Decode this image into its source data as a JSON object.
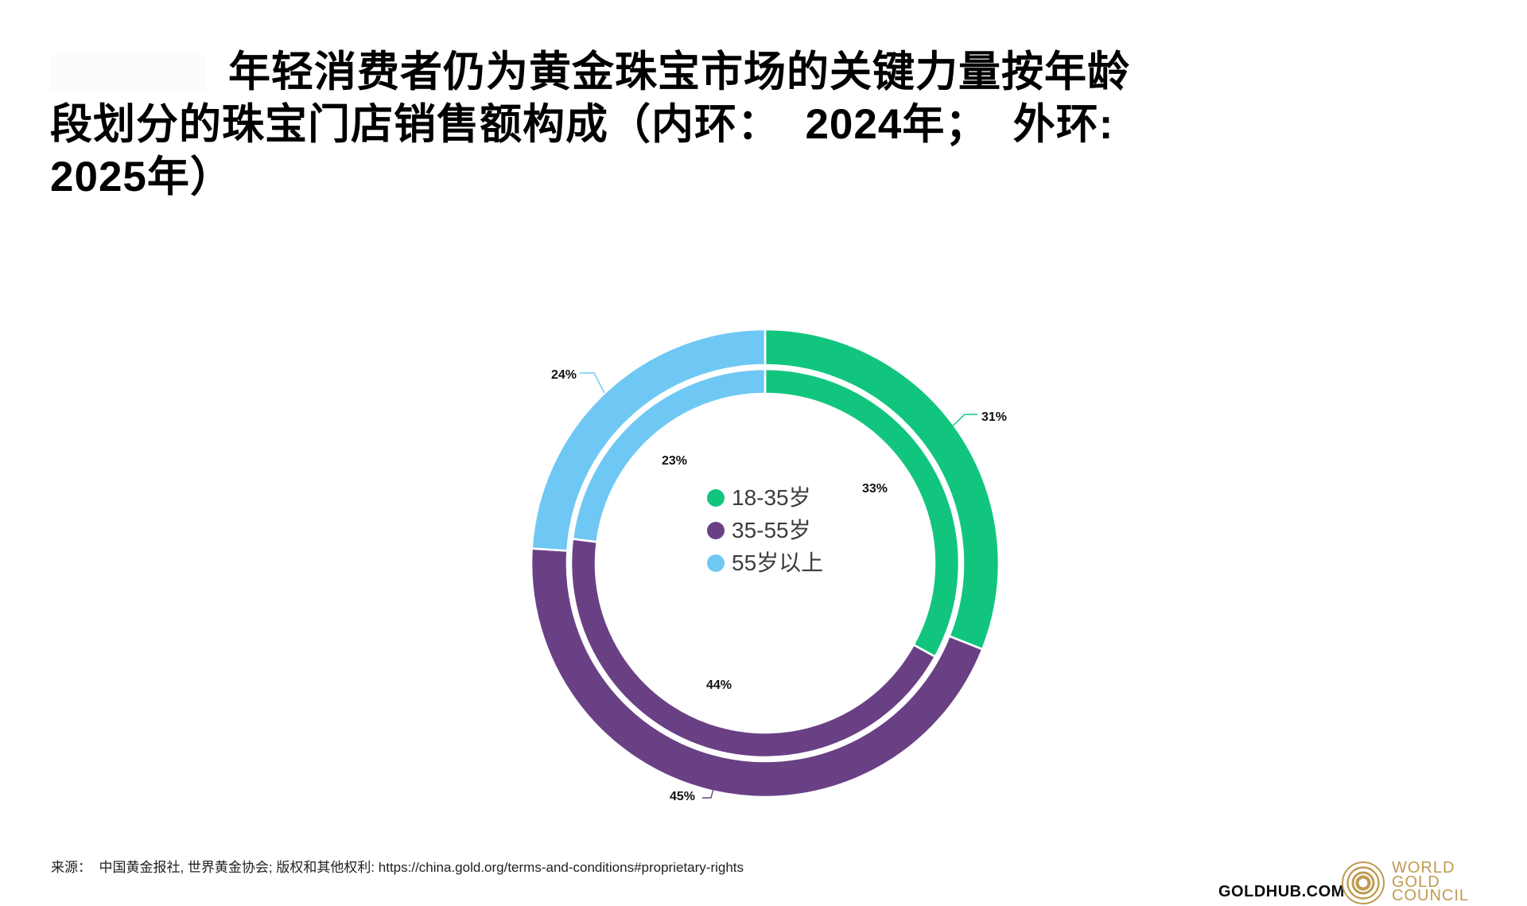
{
  "title": {
    "line1": "年轻消费者仍为黄金珠宝市场的关键力量按年龄",
    "line2": "段划分的珠宝门店销售额构成（内环：  2024年；  外环:",
    "line3": "2025年）"
  },
  "chart_data": {
    "type": "donut",
    "title": "年轻消费者仍为黄金珠宝市场的关键力量按年龄段划分的珠宝门店销售额构成（内环：2024年；外环: 2025年）",
    "categories": [
      "18-35岁",
      "35-55岁",
      "55岁以上"
    ],
    "colors": [
      "#12c57e",
      "#6a4085",
      "#6fc8f3"
    ],
    "rings": [
      {
        "name": "2025年（外环）",
        "values": [
          31,
          45,
          24
        ],
        "labels": [
          "31%",
          "45%",
          "24%"
        ]
      },
      {
        "name": "2024年（内环）",
        "values": [
          33,
          44,
          23
        ],
        "labels": [
          "33%",
          "44%",
          "23%"
        ]
      }
    ],
    "legend": [
      {
        "label": "18-35岁",
        "color": "#12c57e"
      },
      {
        "label": "35-55岁",
        "color": "#6a4085"
      },
      {
        "label": "55岁以上",
        "color": "#6fc8f3"
      }
    ],
    "legend_position": "center",
    "start_angle_deg": 0,
    "direction": "clockwise"
  },
  "footer": {
    "source": "来源：  中国黄金报社, 世界黄金协会; 版权和其他权利: https://china.gold.org/terms-and-conditions#proprietary-rights",
    "goldhub": "GOLDHUB.COM",
    "wgc_wordmark": {
      "line1": "WORLD",
      "line2": "GOLD",
      "line3": "COUNCIL"
    }
  },
  "brand": {
    "gold": "#bf9b51"
  }
}
